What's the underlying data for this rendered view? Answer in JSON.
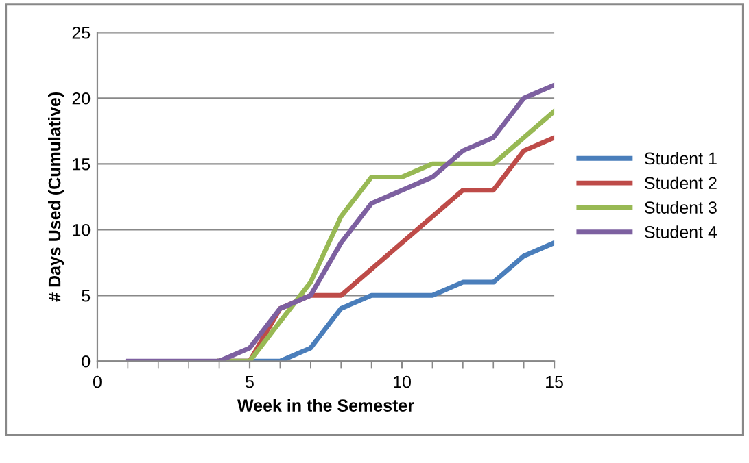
{
  "chart_data": {
    "type": "line",
    "xlabel": "Week in the Semester",
    "ylabel": "# Days Used (Cumulative)",
    "x": [
      1,
      2,
      3,
      4,
      5,
      6,
      7,
      8,
      9,
      10,
      11,
      12,
      13,
      14,
      15
    ],
    "series": [
      {
        "name": "Student 1",
        "color": "#4a7ebb",
        "values": [
          null,
          null,
          null,
          0,
          0,
          0,
          1,
          4,
          5,
          5,
          5,
          6,
          6,
          8,
          9
        ]
      },
      {
        "name": "Student 2",
        "color": "#be4b48",
        "values": [
          null,
          null,
          null,
          0,
          0,
          4,
          5,
          5,
          7,
          9,
          11,
          13,
          13,
          16,
          17
        ]
      },
      {
        "name": "Student 3",
        "color": "#98b954",
        "values": [
          null,
          null,
          null,
          0,
          0,
          3,
          6,
          11,
          14,
          14,
          15,
          15,
          15,
          17,
          19
        ]
      },
      {
        "name": "Student 4",
        "color": "#7d60a0",
        "values": [
          0,
          0,
          0,
          0,
          1,
          4,
          5,
          9,
          12,
          13,
          14,
          16,
          17,
          20,
          21
        ]
      }
    ],
    "xlim": [
      0,
      15
    ],
    "xticks": [
      0,
      5,
      10,
      15
    ],
    "ylim": [
      0,
      25
    ],
    "yticks": [
      0,
      5,
      10,
      15,
      20,
      25
    ],
    "grid": "y",
    "legend": "right",
    "marker": "none",
    "line_style": "solid"
  }
}
